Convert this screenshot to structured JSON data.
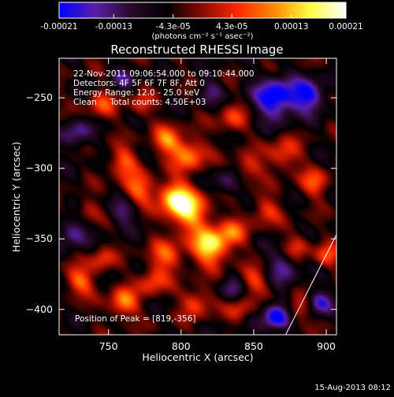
{
  "colorbar": {
    "tick_labels": [
      "-0.00021",
      "-0.00013",
      "-4.3e-05",
      "4.3e-05",
      "0.00013",
      "0.00021"
    ],
    "tick_values": [
      -0.00021,
      -0.00013,
      -4.3e-05,
      4.3e-05,
      0.00013,
      0.00021
    ],
    "range": [
      -0.00021,
      0.00021
    ],
    "units": "(photons cm⁻² s⁻¹ asec⁻²)",
    "colormap": [
      "#0000ff",
      "#5a1fa8",
      "#2a0a2a",
      "#000000",
      "#8a0a00",
      "#ff2a00",
      "#ff8a00",
      "#ffff40",
      "#ffffff"
    ]
  },
  "chart_data": {
    "type": "heatmap",
    "title": "Reconstructed RHESSI Image",
    "xlabel": "Heliocentric X (arcsec)",
    "ylabel": "Heliocentric Y (arcsec)",
    "xlim": [
      716,
      907
    ],
    "ylim": [
      -418,
      -222
    ],
    "x_ticks": [
      750,
      800,
      850,
      900
    ],
    "x_tick_labels": [
      "750",
      "800",
      "850",
      "900"
    ],
    "y_ticks": [
      -250,
      -300,
      -350,
      -400
    ],
    "y_tick_labels": [
      "−250",
      "−300",
      "−350",
      "−400"
    ],
    "peak": [
      819,
      -356
    ],
    "peak_label": "Position of Peak = [819,-356]",
    "limb_line": [
      [
        872,
        -418
      ],
      [
        907,
        -347
      ]
    ],
    "hot_spots": [
      {
        "x": 820,
        "y": -355,
        "strength": 1.0,
        "size": 9
      },
      {
        "x": 805,
        "y": -330,
        "strength": 0.85,
        "size": 10
      },
      {
        "x": 795,
        "y": -320,
        "strength": 0.8,
        "size": 8
      },
      {
        "x": 805,
        "y": -290,
        "strength": 0.7,
        "size": 8
      },
      {
        "x": 790,
        "y": -280,
        "strength": 0.65,
        "size": 7
      },
      {
        "x": 770,
        "y": -315,
        "strength": 0.6,
        "size": 8
      },
      {
        "x": 760,
        "y": -295,
        "strength": 0.55,
        "size": 7
      },
      {
        "x": 745,
        "y": -255,
        "strength": 0.45,
        "size": 7
      },
      {
        "x": 772,
        "y": -255,
        "strength": 0.4,
        "size": 6
      },
      {
        "x": 835,
        "y": -265,
        "strength": 0.45,
        "size": 7
      },
      {
        "x": 845,
        "y": -300,
        "strength": 0.45,
        "size": 7
      },
      {
        "x": 870,
        "y": -290,
        "strength": 0.5,
        "size": 8
      },
      {
        "x": 892,
        "y": -310,
        "strength": 0.5,
        "size": 7
      },
      {
        "x": 858,
        "y": -330,
        "strength": 0.45,
        "size": 7
      },
      {
        "x": 880,
        "y": -355,
        "strength": 0.45,
        "size": 6
      },
      {
        "x": 900,
        "y": -362,
        "strength": 0.5,
        "size": 6
      },
      {
        "x": 835,
        "y": -345,
        "strength": 0.5,
        "size": 7
      },
      {
        "x": 850,
        "y": -380,
        "strength": 0.45,
        "size": 7
      },
      {
        "x": 790,
        "y": -362,
        "strength": 0.55,
        "size": 8
      },
      {
        "x": 780,
        "y": -380,
        "strength": 0.5,
        "size": 7
      },
      {
        "x": 810,
        "y": -395,
        "strength": 0.55,
        "size": 7
      },
      {
        "x": 840,
        "y": -400,
        "strength": 0.4,
        "size": 6
      },
      {
        "x": 760,
        "y": -395,
        "strength": 0.7,
        "size": 7
      },
      {
        "x": 730,
        "y": -380,
        "strength": 0.6,
        "size": 7
      },
      {
        "x": 745,
        "y": -365,
        "strength": 0.45,
        "size": 6
      },
      {
        "x": 880,
        "y": -400,
        "strength": 0.45,
        "size": 6
      },
      {
        "x": 735,
        "y": -330,
        "strength": 0.35,
        "size": 6
      }
    ],
    "cold_spots": [
      {
        "x": 865,
        "y": -250,
        "strength": 1.0,
        "size": 10
      },
      {
        "x": 888,
        "y": -248,
        "strength": 0.8,
        "size": 8
      },
      {
        "x": 865,
        "y": -405,
        "strength": 0.9,
        "size": 7
      },
      {
        "x": 895,
        "y": -395,
        "strength": 0.65,
        "size": 6
      },
      {
        "x": 728,
        "y": -275,
        "strength": 0.55,
        "size": 7
      },
      {
        "x": 725,
        "y": -345,
        "strength": 0.6,
        "size": 7
      },
      {
        "x": 760,
        "y": -330,
        "strength": 0.5,
        "size": 7
      },
      {
        "x": 832,
        "y": -310,
        "strength": 0.45,
        "size": 7
      },
      {
        "x": 870,
        "y": -370,
        "strength": 0.5,
        "size": 8
      },
      {
        "x": 835,
        "y": -385,
        "strength": 0.4,
        "size": 6
      },
      {
        "x": 760,
        "y": -235,
        "strength": 0.4,
        "size": 6
      },
      {
        "x": 820,
        "y": -245,
        "strength": 0.4,
        "size": 6
      }
    ]
  },
  "info": {
    "line1": "22-Nov-2011 09:06:54.000 to 09:10:44.000",
    "line2": "Detectors: 4F 5F 6F 7F 8F, Att 0",
    "line3": "Energy Range: 12.0 - 25.0 keV",
    "line4": "Clean     Total counts: 4.50E+03"
  },
  "footer": {
    "timestamp": "15-Aug-2013 08:12"
  }
}
